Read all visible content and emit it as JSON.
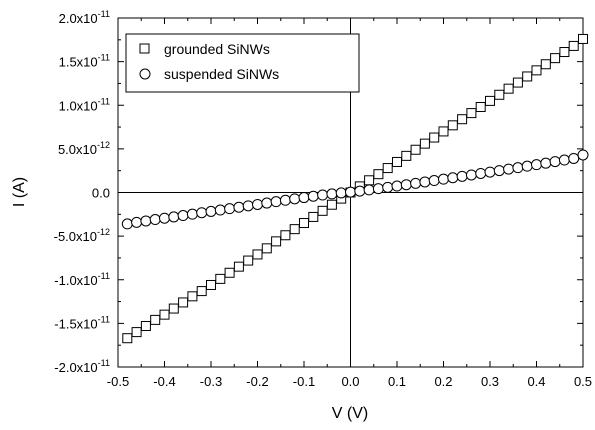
{
  "chart_data": {
    "type": "scatter",
    "xlabel": "V (V)",
    "ylabel": "I (A)",
    "xlim": [
      -0.5,
      0.5
    ],
    "ylim": [
      -2e-11,
      2e-11
    ],
    "grid": false,
    "legend_position": "top-left",
    "x_ticks": [
      {
        "value": -0.5,
        "label": "-0.5"
      },
      {
        "value": -0.4,
        "label": "-0.4"
      },
      {
        "value": -0.3,
        "label": "-0.3"
      },
      {
        "value": -0.2,
        "label": "-0.2"
      },
      {
        "value": -0.1,
        "label": "-0.1"
      },
      {
        "value": 0.0,
        "label": "0.0"
      },
      {
        "value": 0.1,
        "label": "0.1"
      },
      {
        "value": 0.2,
        "label": "0.2"
      },
      {
        "value": 0.3,
        "label": "0.3"
      },
      {
        "value": 0.4,
        "label": "0.4"
      },
      {
        "value": 0.5,
        "label": "0.5"
      }
    ],
    "y_ticks": [
      {
        "value": 2e-11,
        "mant": "2.0x10",
        "exp": "-11"
      },
      {
        "value": 1.5e-11,
        "mant": "1.5x10",
        "exp": "-11"
      },
      {
        "value": 1e-11,
        "mant": "1.0x10",
        "exp": "-11"
      },
      {
        "value": 5e-12,
        "mant": "5.0x10",
        "exp": "-12"
      },
      {
        "value": 0.0,
        "mant": "0.0",
        "exp": ""
      },
      {
        "value": -5e-12,
        "mant": "-5.0x10",
        "exp": "-12"
      },
      {
        "value": -1e-11,
        "mant": "-1.0x10",
        "exp": "-11"
      },
      {
        "value": -1.5e-11,
        "mant": "-1.5x10",
        "exp": "-11"
      },
      {
        "value": -2e-11,
        "mant": "-2.0x10",
        "exp": "-11"
      }
    ],
    "series": [
      {
        "name": "grounded SiNWs",
        "marker": "square",
        "x": [
          -0.48,
          -0.46,
          -0.44,
          -0.42,
          -0.4,
          -0.38,
          -0.36,
          -0.34,
          -0.32,
          -0.3,
          -0.28,
          -0.26,
          -0.24,
          -0.22,
          -0.2,
          -0.18,
          -0.16,
          -0.14,
          -0.12,
          -0.1,
          -0.08,
          -0.06,
          -0.04,
          -0.02,
          0.0,
          0.02,
          0.04,
          0.06,
          0.08,
          0.1,
          0.12,
          0.14,
          0.16,
          0.18,
          0.2,
          0.22,
          0.24,
          0.26,
          0.28,
          0.3,
          0.32,
          0.34,
          0.36,
          0.38,
          0.4,
          0.42,
          0.44,
          0.46,
          0.48,
          0.5
        ],
        "y": [
          -1.67e-11,
          -1.6e-11,
          -1.53e-11,
          -1.46e-11,
          -1.4e-11,
          -1.33e-11,
          -1.26e-11,
          -1.19e-11,
          -1.13e-11,
          -1.06e-11,
          -9.9e-12,
          -9.2e-12,
          -8.5e-12,
          -7.8e-12,
          -7.1e-12,
          -6.4e-12,
          -5.6e-12,
          -4.9e-12,
          -4.2e-12,
          -3.5e-12,
          -2.8e-12,
          -2.1e-12,
          -1.4e-12,
          -7e-13,
          0.0,
          7e-13,
          1.4e-12,
          2.1e-12,
          2.8e-12,
          3.5e-12,
          4.2e-12,
          4.9e-12,
          5.6e-12,
          6.3e-12,
          7e-12,
          7.7e-12,
          8.4e-12,
          9.1e-12,
          9.8e-12,
          1.05e-11,
          1.12e-11,
          1.19e-11,
          1.26e-11,
          1.33e-11,
          1.4e-11,
          1.47e-11,
          1.54e-11,
          1.61e-11,
          1.68e-11,
          1.76e-11
        ]
      },
      {
        "name": "suspended SiNWs",
        "marker": "circle",
        "x": [
          -0.48,
          -0.46,
          -0.44,
          -0.42,
          -0.4,
          -0.38,
          -0.36,
          -0.34,
          -0.32,
          -0.3,
          -0.28,
          -0.26,
          -0.24,
          -0.22,
          -0.2,
          -0.18,
          -0.16,
          -0.14,
          -0.12,
          -0.1,
          -0.08,
          -0.06,
          -0.04,
          -0.02,
          0.0,
          0.02,
          0.04,
          0.06,
          0.08,
          0.1,
          0.12,
          0.14,
          0.16,
          0.18,
          0.2,
          0.22,
          0.24,
          0.26,
          0.28,
          0.3,
          0.32,
          0.34,
          0.36,
          0.38,
          0.4,
          0.42,
          0.44,
          0.46,
          0.48,
          0.5
        ],
        "y": [
          -3.6e-12,
          -3.42e-12,
          -3.26e-12,
          -3.1e-12,
          -2.95e-12,
          -2.8e-12,
          -2.64e-12,
          -2.48e-12,
          -2.32e-12,
          -2.17e-12,
          -2.01e-12,
          -1.85e-12,
          -1.69e-12,
          -1.53e-12,
          -1.37e-12,
          -1.21e-12,
          -1.05e-12,
          -8.9e-13,
          -7.3e-13,
          -5.8e-13,
          -4.3e-13,
          -2.9e-13,
          -1.6e-13,
          -5e-14,
          5e-14,
          1.6e-13,
          3e-13,
          4.4e-13,
          5.9e-13,
          7.4e-13,
          8.9e-13,
          1.05e-12,
          1.21e-12,
          1.37e-12,
          1.53e-12,
          1.69e-12,
          1.85e-12,
          2.01e-12,
          2.18e-12,
          2.34e-12,
          2.51e-12,
          2.68e-12,
          2.85e-12,
          3.02e-12,
          3.19e-12,
          3.36e-12,
          3.54e-12,
          3.72e-12,
          3.9e-12,
          4.3e-12
        ]
      }
    ]
  }
}
